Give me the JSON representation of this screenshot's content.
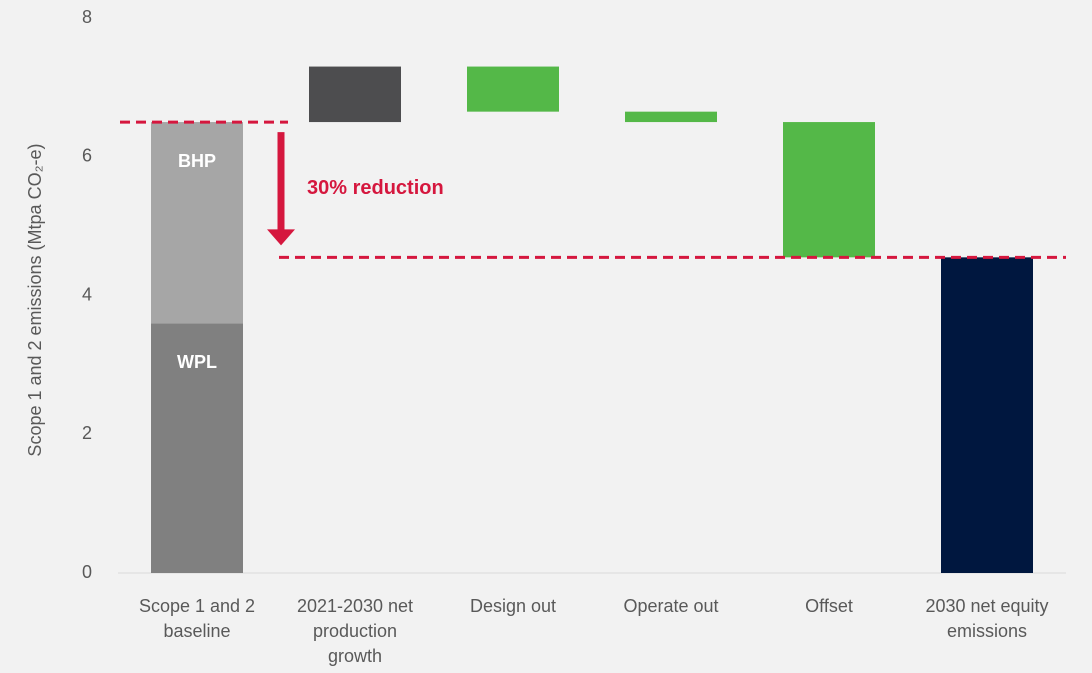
{
  "chart_data": {
    "type": "waterfall",
    "y_label": "Scope 1 and 2 emissions (Mtpa CO₂-e)",
    "categories": [
      "Scope 1 and 2 baseline",
      "2021-2030 net production growth",
      "Design out",
      "Operate out",
      "Offset",
      "2030 net equity emissions"
    ],
    "baseline_segments": [
      {
        "name": "WPL",
        "value": 3.6,
        "color": "#808080"
      },
      {
        "name": "BHP",
        "value": 2.9,
        "color": "#a6a6a6"
      }
    ],
    "steps": {
      "values": [
        0.8,
        -0.65,
        -0.15,
        -1.95
      ],
      "colors": [
        "#4d4d4f",
        "#54b848",
        "#54b848",
        "#54b848"
      ]
    },
    "total": {
      "value": 4.55,
      "color": "#00173f"
    },
    "annotation": {
      "text": "30% reduction",
      "color": "#d5173e"
    },
    "ylim": [
      0,
      8
    ],
    "yticks": [
      0,
      2,
      4,
      6,
      8
    ]
  }
}
